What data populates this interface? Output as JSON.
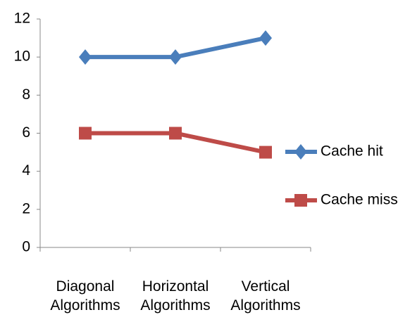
{
  "chart_data": {
    "type": "line",
    "categories": [
      "Diagonal Algorithms",
      "Horizontal Algorithms",
      "Vertical Algorithms"
    ],
    "series": [
      {
        "name": "Cache hit",
        "color": "#4a7ebb",
        "marker": "diamond",
        "values": [
          10,
          10,
          11
        ]
      },
      {
        "name": "Cache miss",
        "color": "#be4b48",
        "marker": "square",
        "values": [
          6,
          6,
          5
        ]
      }
    ],
    "ylim": [
      0,
      12
    ],
    "yticks": [
      0,
      2,
      4,
      6,
      8,
      10,
      12
    ],
    "grid": false,
    "legend": "right"
  }
}
